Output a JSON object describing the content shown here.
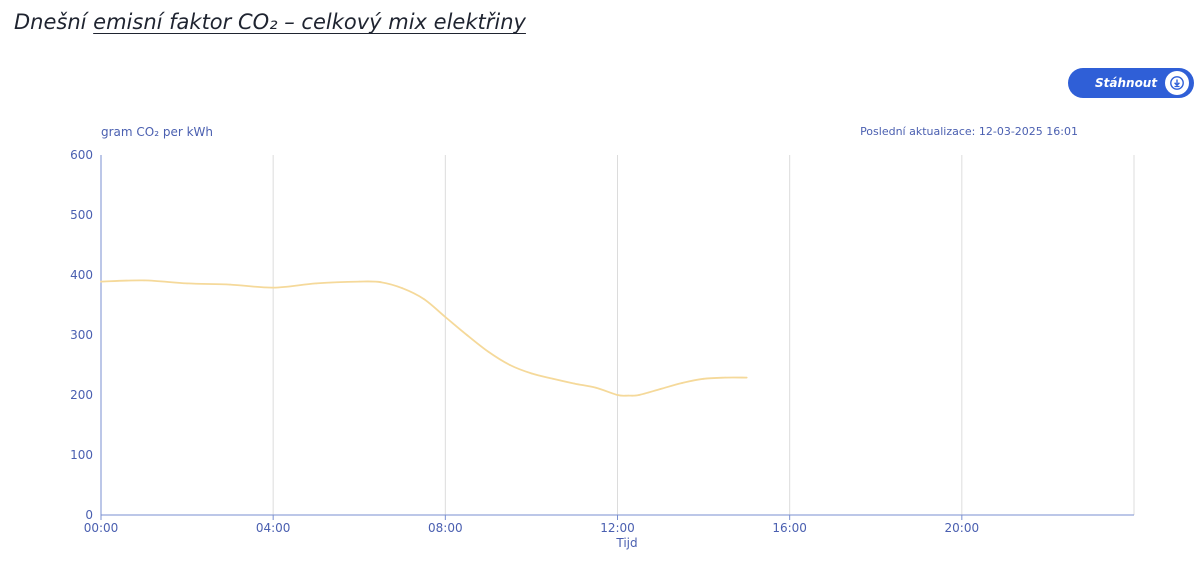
{
  "header": {
    "title_prefix": "Dnešní ",
    "title_underlined": "emisní faktor CO₂ – celkový mix elektřiny"
  },
  "download": {
    "label": "Stáhnout",
    "icon": "download-icon",
    "color": "#2f5fd7"
  },
  "last_updated": "Poslední aktualizace: 12-03-2025 16:01",
  "chart_data": {
    "type": "line",
    "ylabel": "gram CO₂ per kWh",
    "xlabel": "Tijd",
    "ylim": [
      0,
      600
    ],
    "yticks": [
      "0",
      "100",
      "200",
      "300",
      "400",
      "500",
      "600"
    ],
    "xlim": [
      "00:00",
      "24:00"
    ],
    "xticks": [
      "00:00",
      "04:00",
      "08:00",
      "12:00",
      "16:00",
      "20:00"
    ],
    "grid": "vertical",
    "series": [
      {
        "color": "#f5d99a",
        "x": [
          "00:00",
          "01:00",
          "02:00",
          "03:00",
          "04:00",
          "05:00",
          "06:00",
          "06:30",
          "07:00",
          "07:30",
          "08:00",
          "08:30",
          "09:00",
          "09:30",
          "10:00",
          "10:30",
          "11:00",
          "11:30",
          "12:00",
          "12:15",
          "12:30",
          "13:00",
          "13:30",
          "14:00",
          "14:30",
          "15:00"
        ],
        "values": [
          389,
          391,
          386,
          384,
          379,
          386,
          389,
          388,
          378,
          360,
          330,
          300,
          272,
          250,
          236,
          227,
          219,
          212,
          200,
          199,
          200,
          210,
          220,
          227,
          229,
          229
        ]
      }
    ],
    "axis_color": "#7a8fd0",
    "tick_label_color": "#4a5fb0",
    "grid_color": "#dcdcdc"
  }
}
